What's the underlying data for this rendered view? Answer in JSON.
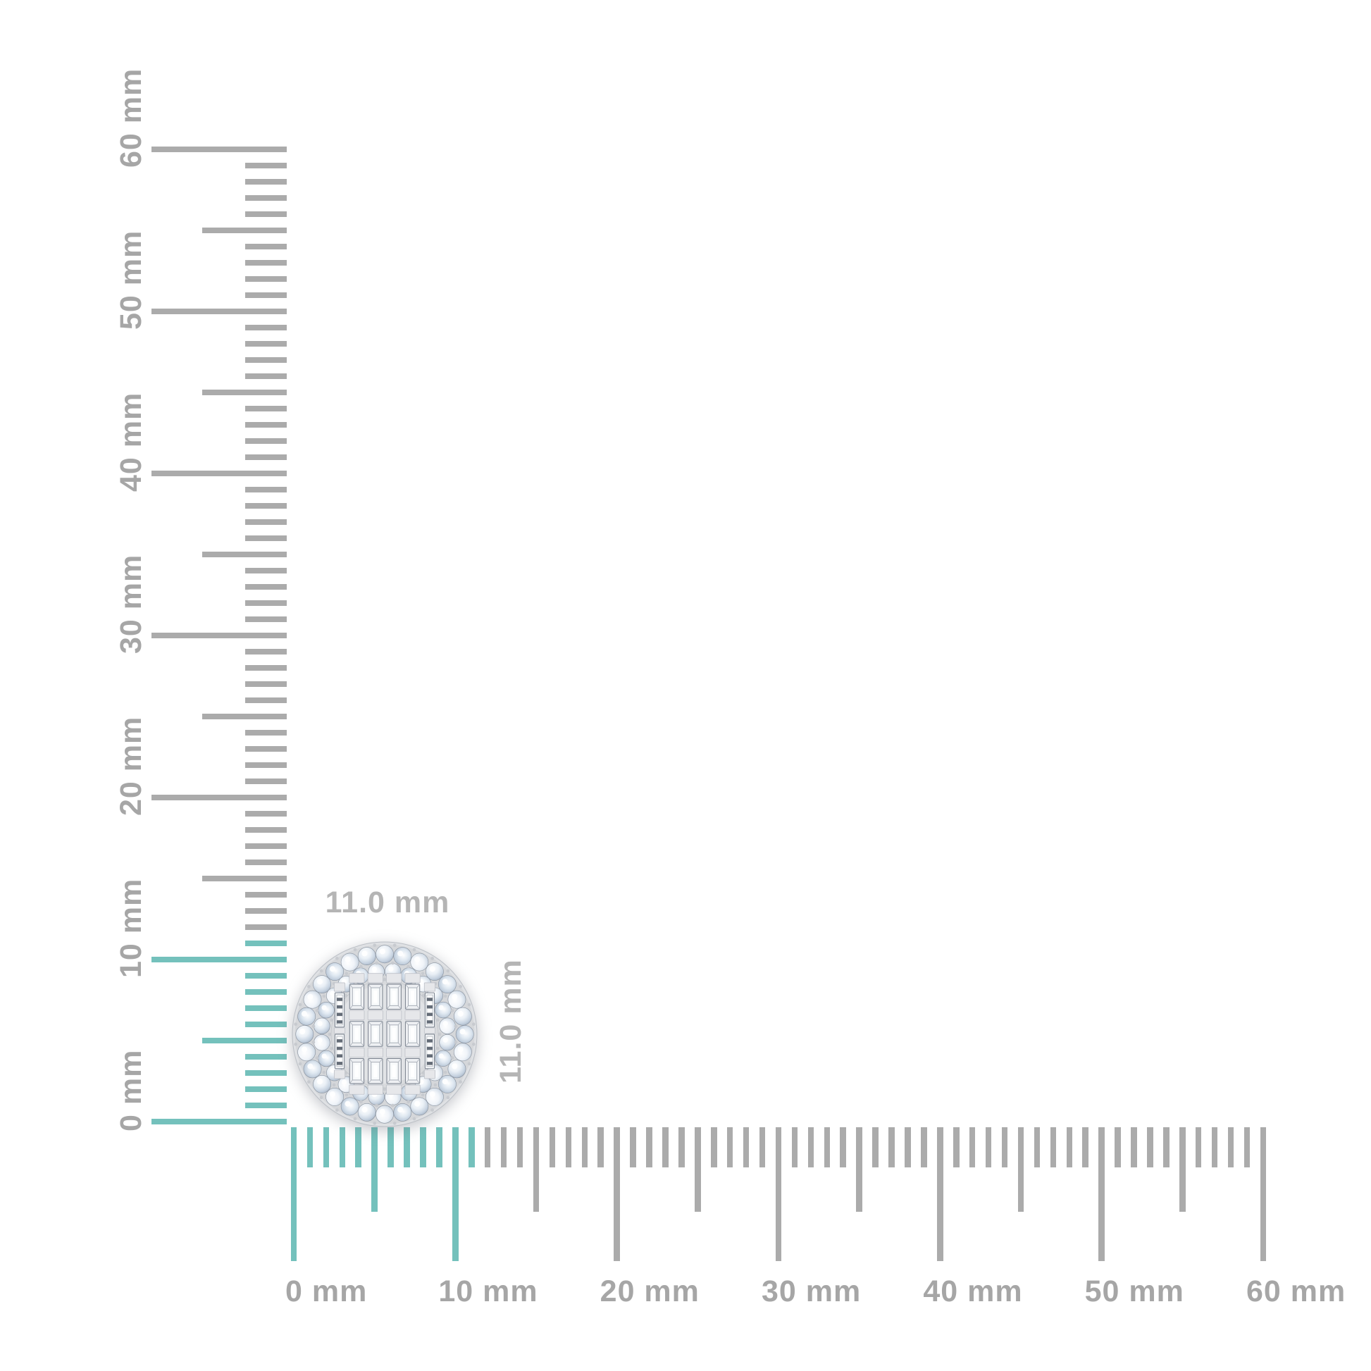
{
  "page": {
    "background": "#ffffff"
  },
  "vertical_ruler": {
    "orientation": "vertical",
    "labels": [
      "0 mm",
      "10 mm",
      "20 mm",
      "30 mm",
      "40 mm",
      "50 mm",
      "60 mm"
    ],
    "min_mm": 0,
    "max_mm": 60,
    "label_step_mm": 10,
    "half_step_mm": 5,
    "minor_step_mm": 1,
    "highlighted_range_mm": [
      0,
      11
    ]
  },
  "horizontal_ruler": {
    "orientation": "horizontal",
    "labels": [
      "0 mm",
      "10 mm",
      "20 mm",
      "30 mm",
      "40 mm",
      "50 mm",
      "60 mm"
    ],
    "min_mm": 0,
    "max_mm": 60,
    "label_step_mm": 10,
    "half_step_mm": 5,
    "minor_step_mm": 1,
    "highlighted_range_mm": [
      0,
      11
    ]
  },
  "dimension_labels": {
    "width": "11.0 mm",
    "height": "11.0 mm"
  },
  "item": {
    "icon": "round-double-halo-baguette-cluster-diamond-stud"
  },
  "colors": {
    "tick_gray": "#ababab",
    "highlight_teal": "#74c1bc",
    "ruler_label_gray": "#a6a6a6",
    "dimension_label_gray": "#b5b5b5",
    "metal_silver": "#dfe1e4",
    "metal_scallop": "#d5d7da",
    "metal_plate": "#e1e3e6",
    "diamond_light": "#eef3f8",
    "diamond_mid": "#c6d2e0",
    "diamond_dark": "#9dabbd",
    "stone_outline": "#87919e",
    "baguette_face": "#eef0f3",
    "stripe_dark": "#646c77"
  }
}
